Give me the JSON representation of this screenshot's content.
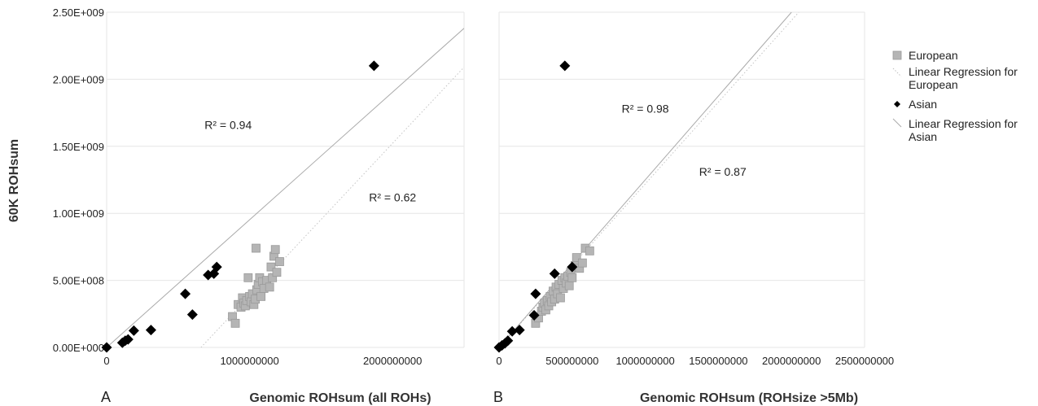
{
  "y_axis_title": "60K ROHsum",
  "colors": {
    "european": "#b5b5b5",
    "european_edge": "#9a9a9a",
    "asian": "#000000",
    "grid": "#e6e6e6",
    "fit": "#aaaaaa"
  },
  "legend": {
    "placement": "right",
    "entries": [
      {
        "label": "European",
        "marker": "square"
      },
      {
        "label": "Linear Regression for European",
        "marker": "dotted-line"
      },
      {
        "label": "Asian",
        "marker": "diamond"
      },
      {
        "label": "Linear Regression for Asian",
        "marker": "solid-line"
      }
    ]
  },
  "chart_data": [
    {
      "type": "scatter",
      "panel_label": "A",
      "xlabel": "Genomic ROHsum (all ROHs)",
      "ylabel": "60K ROHsum",
      "xlim": [
        0,
        2500000000
      ],
      "ylim": [
        0,
        2500000000
      ],
      "x_ticks": [
        "0",
        "1000000000",
        "2000000000"
      ],
      "x_tick_values": [
        0,
        1000000000,
        2000000000
      ],
      "y_ticks": [
        "0.00E+000",
        "5.00E+008",
        "1.00E+009",
        "1.50E+009",
        "2.00E+009",
        "2.50E+009"
      ],
      "y_tick_values": [
        0,
        500000000,
        1000000000,
        1500000000,
        2000000000,
        2500000000
      ],
      "grid": "horizontal",
      "annotations": [
        {
          "text": "R² = 0.94",
          "x": 850000000,
          "y": 1630000000
        },
        {
          "text": "R² = 0.62",
          "x": 2000000000,
          "y": 1090000000
        }
      ],
      "series": [
        {
          "name": "European",
          "marker": "square",
          "points": [
            [
              880000000,
              230000000
            ],
            [
              900000000,
              180000000
            ],
            [
              920000000,
              320000000
            ],
            [
              940000000,
              300000000
            ],
            [
              950000000,
              370000000
            ],
            [
              960000000,
              330000000
            ],
            [
              970000000,
              310000000
            ],
            [
              980000000,
              350000000
            ],
            [
              990000000,
              520000000
            ],
            [
              1000000000,
              380000000
            ],
            [
              1010000000,
              340000000
            ],
            [
              1020000000,
              400000000
            ],
            [
              1030000000,
              320000000
            ],
            [
              1040000000,
              360000000
            ],
            [
              1045000000,
              740000000
            ],
            [
              1050000000,
              430000000
            ],
            [
              1060000000,
              470000000
            ],
            [
              1070000000,
              520000000
            ],
            [
              1080000000,
              380000000
            ],
            [
              1090000000,
              490000000
            ],
            [
              1100000000,
              440000000
            ],
            [
              1120000000,
              500000000
            ],
            [
              1140000000,
              450000000
            ],
            [
              1150000000,
              600000000
            ],
            [
              1160000000,
              520000000
            ],
            [
              1170000000,
              680000000
            ],
            [
              1180000000,
              730000000
            ],
            [
              1190000000,
              560000000
            ],
            [
              1210000000,
              640000000
            ]
          ]
        },
        {
          "name": "Asian",
          "marker": "diamond",
          "points": [
            [
              0,
              0
            ],
            [
              110000000,
              35000000
            ],
            [
              130000000,
              50000000
            ],
            [
              150000000,
              60000000
            ],
            [
              190000000,
              125000000
            ],
            [
              310000000,
              130000000
            ],
            [
              550000000,
              400000000
            ],
            [
              600000000,
              245000000
            ],
            [
              710000000,
              540000000
            ],
            [
              750000000,
              550000000
            ],
            [
              770000000,
              600000000
            ],
            [
              1870000000,
              2100000000
            ]
          ]
        }
      ],
      "trendlines": [
        {
          "name": "Linear Regression for European",
          "style": "dotted",
          "from": [
            660000000,
            0
          ],
          "to": [
            2500000000,
            2090000000
          ]
        },
        {
          "name": "Linear Regression for Asian",
          "style": "solid",
          "from": [
            0,
            0
          ],
          "to": [
            2500000000,
            2380000000
          ]
        }
      ]
    },
    {
      "type": "scatter",
      "panel_label": "B",
      "xlabel": "Genomic ROHsum (ROHsize >5Mb)",
      "ylabel": "",
      "xlim": [
        0,
        2500000000
      ],
      "ylim": [
        0,
        2500000000
      ],
      "x_ticks": [
        "0",
        "500000000",
        "1000000000",
        "1500000000",
        "2000000000",
        "2500000000"
      ],
      "x_tick_values": [
        0,
        500000000,
        1000000000,
        1500000000,
        2000000000,
        2500000000
      ],
      "y_ticks": [],
      "grid": "horizontal",
      "annotations": [
        {
          "text": "R² = 0.98",
          "x": 1000000000,
          "y": 1750000000
        },
        {
          "text": "R² = 0.87",
          "x": 1530000000,
          "y": 1280000000
        }
      ],
      "series": [
        {
          "name": "European",
          "marker": "square",
          "points": [
            [
              250000000,
              180000000
            ],
            [
              270000000,
              220000000
            ],
            [
              290000000,
              270000000
            ],
            [
              300000000,
              300000000
            ],
            [
              310000000,
              330000000
            ],
            [
              320000000,
              280000000
            ],
            [
              330000000,
              350000000
            ],
            [
              340000000,
              310000000
            ],
            [
              350000000,
              380000000
            ],
            [
              360000000,
              340000000
            ],
            [
              370000000,
              420000000
            ],
            [
              380000000,
              360000000
            ],
            [
              390000000,
              450000000
            ],
            [
              400000000,
              400000000
            ],
            [
              410000000,
              470000000
            ],
            [
              420000000,
              370000000
            ],
            [
              430000000,
              500000000
            ],
            [
              440000000,
              440000000
            ],
            [
              450000000,
              520000000
            ],
            [
              460000000,
              480000000
            ],
            [
              470000000,
              530000000
            ],
            [
              480000000,
              460000000
            ],
            [
              490000000,
              560000000
            ],
            [
              500000000,
              520000000
            ],
            [
              520000000,
              610000000
            ],
            [
              530000000,
              670000000
            ],
            [
              550000000,
              590000000
            ],
            [
              570000000,
              630000000
            ],
            [
              590000000,
              740000000
            ],
            [
              620000000,
              720000000
            ]
          ]
        },
        {
          "name": "Asian",
          "marker": "diamond",
          "points": [
            [
              0,
              0
            ],
            [
              20000000,
              15000000
            ],
            [
              40000000,
              30000000
            ],
            [
              60000000,
              50000000
            ],
            [
              90000000,
              120000000
            ],
            [
              140000000,
              130000000
            ],
            [
              240000000,
              240000000
            ],
            [
              250000000,
              400000000
            ],
            [
              380000000,
              550000000
            ],
            [
              500000000,
              600000000
            ],
            [
              450000000,
              2100000000
            ]
          ]
        }
      ],
      "trendlines": [
        {
          "name": "Linear Regression for European",
          "style": "dotted",
          "from": [
            0,
            0
          ],
          "to": [
            2050000000,
            2500000000
          ]
        },
        {
          "name": "Linear Regression for Asian",
          "style": "solid",
          "from": [
            0,
            0
          ],
          "to": [
            2000000000,
            2500000000
          ]
        }
      ]
    }
  ]
}
